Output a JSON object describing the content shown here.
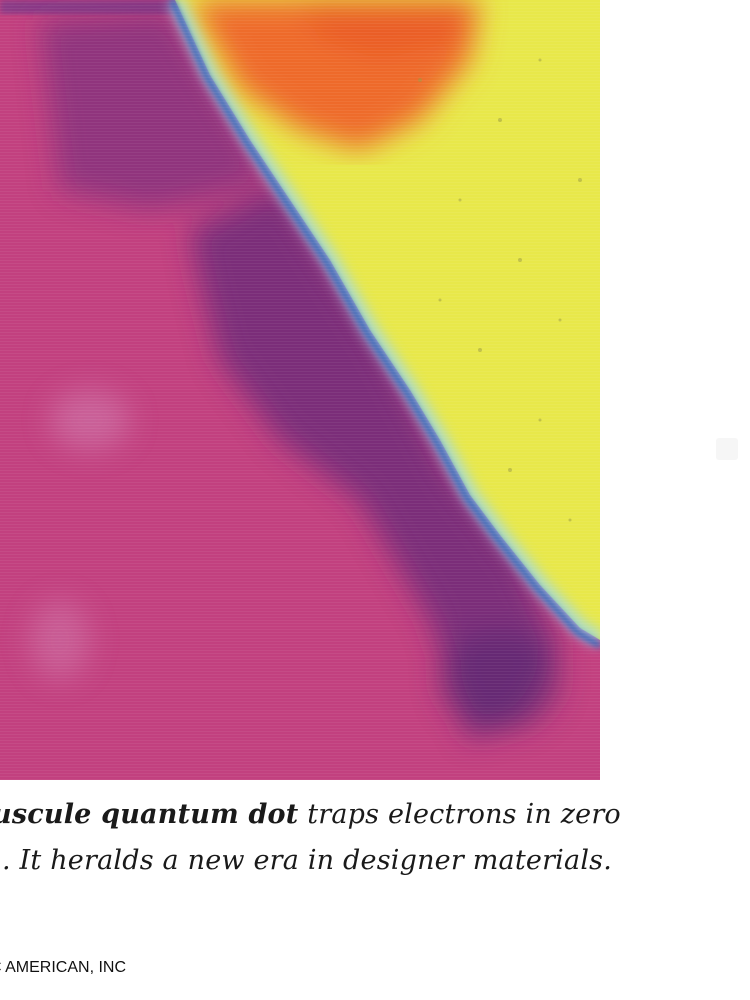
{
  "figure": {
    "subject": "quantum dot micrograph",
    "colors": {
      "substrate": "#c2407f",
      "dark_region": "#6e2a78",
      "boundary": "#3fa6e8",
      "surface": "#e8e84a",
      "hot_region": "#ee6a2a"
    }
  },
  "caption": {
    "line1_bold": "uscule quantum dot",
    "line1_rest": " traps electrons in zero",
    "line2": ". It heralds a new era in designer materials."
  },
  "credit": "C AMERICAN, INC"
}
